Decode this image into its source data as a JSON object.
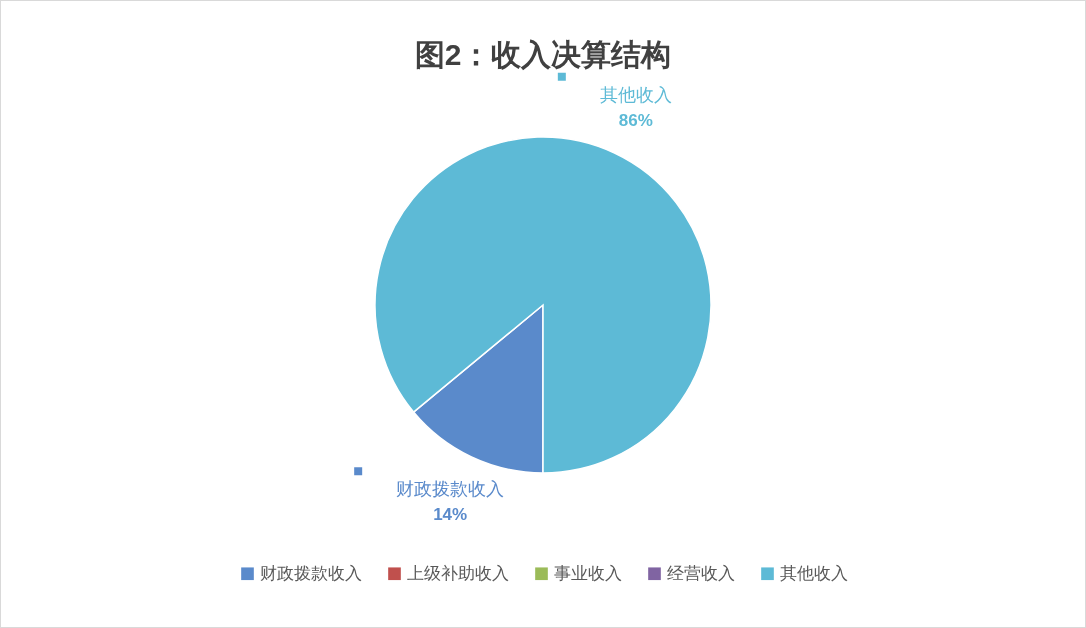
{
  "chart_data": {
    "type": "pie",
    "title": "图2：收入决算结构",
    "categories": [
      "财政拨款收入",
      "上级补助收入",
      "事业收入",
      "经营收入",
      "其他收入"
    ],
    "values": [
      14,
      0,
      0,
      0,
      86
    ],
    "colors": [
      "#5a8acb",
      "#c0504d",
      "#9bbb59",
      "#8064a2",
      "#5dbad6"
    ],
    "value_labels": [
      "14%",
      null,
      null,
      null,
      "86%"
    ],
    "legend": "bottom"
  }
}
